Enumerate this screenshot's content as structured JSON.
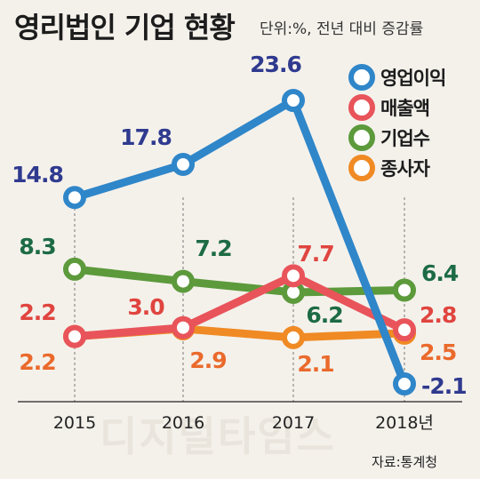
{
  "title": "영리법인 기업 현황",
  "subtitle": "단위:%, 전년 대비 증감률",
  "source": "자료:통계청",
  "watermark": "디지털타임스",
  "legend": [
    {
      "label": "영업이익",
      "color": "#2f86c9"
    },
    {
      "label": "매출액",
      "color": "#e8545a"
    },
    {
      "label": "기업수",
      "color": "#5c9a3b"
    },
    {
      "label": "종사자",
      "color": "#f08a24"
    }
  ],
  "chart_data": {
    "type": "line",
    "x": [
      "2015",
      "2016",
      "2017",
      "2018년"
    ],
    "ylim": [
      -3,
      25
    ],
    "grid": false,
    "legend_position": "top-right",
    "series": [
      {
        "name": "영업이익",
        "color": "#2f86c9",
        "label_color": "#2f3a8f",
        "values": [
          14.8,
          17.8,
          23.6,
          -2.1
        ],
        "labels": [
          "14.8",
          "17.8",
          "23.6",
          "-2.1"
        ]
      },
      {
        "name": "매출액",
        "color": "#e8545a",
        "label_color": "#e0453f",
        "values": [
          2.2,
          3.0,
          7.7,
          2.8
        ],
        "labels": [
          "2.2",
          "3.0",
          "7.7",
          "2.8"
        ]
      },
      {
        "name": "기업수",
        "color": "#5c9a3b",
        "label_color": "#1d6b45",
        "values": [
          8.3,
          7.2,
          6.2,
          6.4
        ],
        "labels": [
          "8.3",
          "7.2",
          "6.2",
          "6.4"
        ]
      },
      {
        "name": "종사자",
        "color": "#f08a24",
        "label_color": "#ea6a2c",
        "values": [
          2.2,
          2.9,
          2.1,
          2.5
        ],
        "labels": [
          "2.2",
          "2.9",
          "2.1",
          "2.5"
        ]
      }
    ]
  }
}
